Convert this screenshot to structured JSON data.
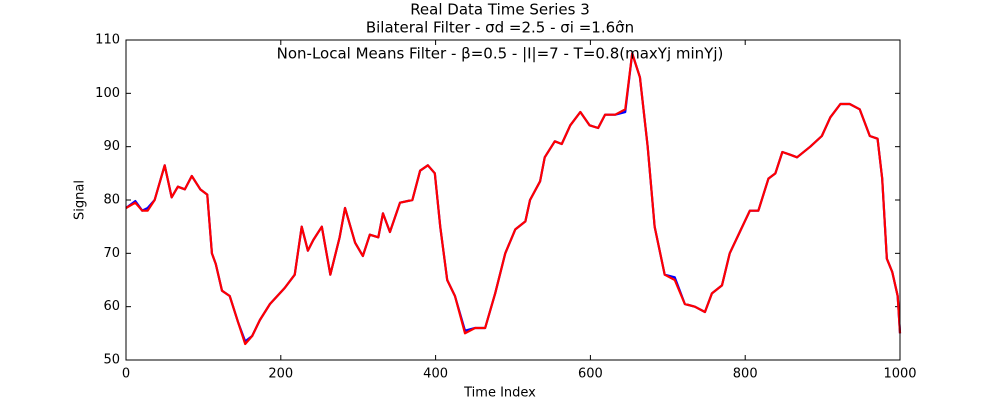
{
  "chart_data": {
    "type": "line",
    "title": "Real Data Time Series 3",
    "subtitle": "Bilateral Filter - σd =2.5 - σi =1.6σ̂n",
    "annotation": "Non-Local Means Filter - β=0.5 - |I|=7 - T=0.8(maxYj minYj)",
    "x_label": "Time Index",
    "y_label": "Signal",
    "x": [
      0,
      12,
      21,
      28,
      37,
      47,
      50,
      59,
      67,
      76,
      85,
      96,
      105,
      111,
      116,
      124,
      134,
      145,
      154,
      163,
      173,
      186,
      205,
      218,
      227,
      235,
      242,
      253,
      264,
      276,
      283,
      296,
      306,
      315,
      326,
      332,
      341,
      354,
      370,
      380,
      390,
      399,
      406,
      415,
      425,
      438,
      451,
      464,
      477,
      490,
      503,
      516,
      522,
      535,
      541,
      554,
      563,
      574,
      587,
      599,
      610,
      619,
      632,
      645,
      654,
      664,
      674,
      683,
      696,
      709,
      722,
      735,
      748,
      757,
      770,
      780,
      793,
      806,
      817,
      830,
      839,
      848,
      858,
      867,
      884,
      899,
      910,
      923,
      935,
      948,
      961,
      971,
      977,
      983,
      990,
      997,
      1000
    ],
    "series": [
      {
        "color": "#0000ff",
        "values": [
          78.5,
          79.8,
          78,
          78.5,
          80,
          85,
          86.5,
          80.5,
          82.5,
          82,
          84.5,
          82,
          81,
          70,
          68,
          63,
          62,
          57,
          53.5,
          54.5,
          57.5,
          60.5,
          63.5,
          66,
          75,
          70.5,
          72.5,
          75,
          66,
          73,
          78.5,
          72,
          69.5,
          73.5,
          73,
          77.5,
          74,
          79.5,
          80,
          85.5,
          86.5,
          85,
          75,
          65,
          62,
          55.5,
          56,
          56,
          62.5,
          70,
          74.5,
          76,
          80,
          83.5,
          88,
          91,
          90.5,
          94,
          96.5,
          94,
          93.5,
          96,
          96,
          96.5,
          107.5,
          103,
          90,
          75,
          66,
          65.5,
          60.5,
          60,
          59,
          62.5,
          64,
          70,
          74,
          78,
          78,
          84,
          85,
          89,
          88.5,
          88,
          90,
          92,
          95.5,
          98,
          98,
          97,
          92,
          91.5,
          84,
          69,
          66.5,
          62,
          55
        ]
      },
      {
        "color": "#ff0000",
        "values": [
          78.5,
          79.5,
          78,
          78,
          80,
          85,
          86.5,
          80.5,
          82.5,
          82,
          84.5,
          82,
          81,
          70,
          68,
          63,
          62,
          57,
          53,
          54.5,
          57.5,
          60.5,
          63.5,
          66,
          75,
          70.5,
          72.5,
          75,
          66,
          73,
          78.5,
          72,
          69.5,
          73.5,
          73,
          77.5,
          74,
          79.5,
          80,
          85.5,
          86.5,
          85,
          75,
          65,
          62,
          55,
          56,
          56,
          62.5,
          70,
          74.5,
          76,
          80,
          83.5,
          88,
          91,
          90.5,
          94,
          96.5,
          94,
          93.5,
          96,
          96,
          97,
          107.5,
          103,
          90,
          75,
          66,
          65,
          60.5,
          60,
          59,
          62.5,
          64,
          70,
          74,
          78,
          78,
          84,
          85,
          89,
          88.5,
          88,
          90,
          92,
          95.5,
          98,
          98,
          97,
          92,
          91.5,
          84,
          69,
          66.5,
          62,
          55
        ]
      }
    ],
    "xlim": [
      0,
      1000
    ],
    "xticks": [
      0,
      200,
      400,
      600,
      800,
      1000
    ],
    "ylim": [
      50,
      110
    ],
    "yticks": [
      50,
      60,
      70,
      80,
      90,
      100,
      110
    ],
    "grid": false
  }
}
